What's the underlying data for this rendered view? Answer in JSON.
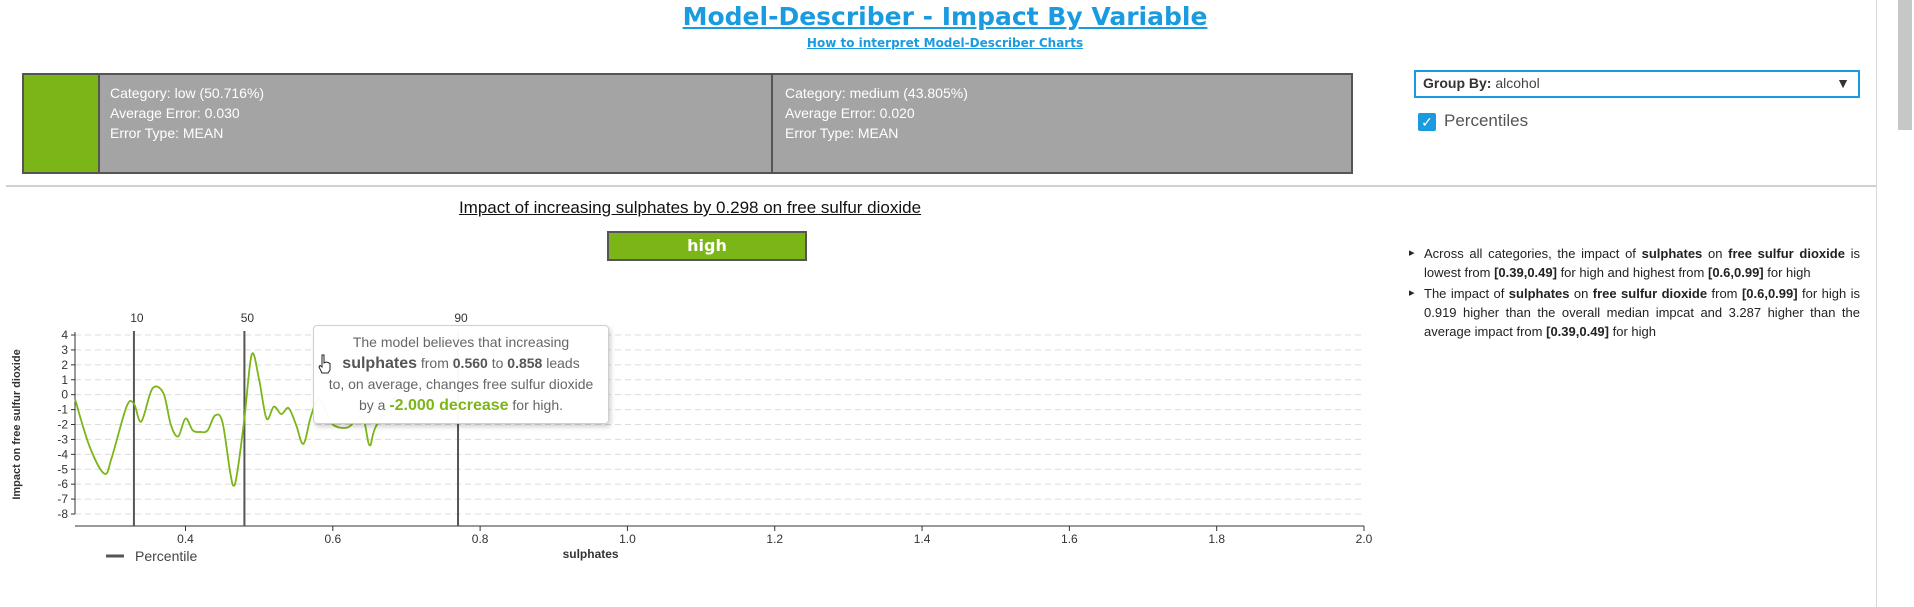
{
  "header": {
    "title": "Model-Describer - Impact By Variable",
    "subtitle_link": "How to interpret Model-Describer Charts"
  },
  "categories": [
    {
      "line1": "Category: low (50.716%)",
      "line2": "Average Error: 0.030",
      "line3": "Error Type: MEAN"
    },
    {
      "line1": "Category: medium (43.805%)",
      "line2": "Average Error: 0.020",
      "line3": "Error Type: MEAN"
    }
  ],
  "controls": {
    "group_by_label": "Group By:",
    "group_by_value": "alcohol",
    "percentiles_label": "Percentiles",
    "percentiles_checked": true
  },
  "colors": {
    "accent": "#1a9be0",
    "series": "#7cb518",
    "category_bg": "#a4a4a4",
    "percentile_line": "#555555"
  },
  "selected_category": "high",
  "insights": [
    [
      {
        "t": "Across all categories, the impact of ",
        "b": false
      },
      {
        "t": "sulphates",
        "b": true
      },
      {
        "t": " on ",
        "b": false
      },
      {
        "t": "free sulfur dioxide",
        "b": true
      },
      {
        "t": " is lowest from ",
        "b": false
      },
      {
        "t": "[0.39,0.49]",
        "b": true
      },
      {
        "t": " for high and highest from ",
        "b": false
      },
      {
        "t": "[0.6,0.99]",
        "b": true
      },
      {
        "t": " for high",
        "b": false
      }
    ],
    [
      {
        "t": "The impact of ",
        "b": false
      },
      {
        "t": "sulphates",
        "b": true
      },
      {
        "t": " on ",
        "b": false
      },
      {
        "t": "free sulfur dioxide",
        "b": true
      },
      {
        "t": " from ",
        "b": false
      },
      {
        "t": "[0.6,0.99]",
        "b": true
      },
      {
        "t": " for high is 0.919 higher than the overall median impcat and 3.287 higher than the average impact from ",
        "b": false
      },
      {
        "t": "[0.39,0.49]",
        "b": true
      },
      {
        "t": " for high",
        "b": false
      }
    ]
  ],
  "tooltip": {
    "line1": "The model believes that increasing",
    "var": "sulphates",
    "from_word": "from",
    "from_val": "0.560",
    "to_word": "to",
    "to_val": "0.858",
    "leads": "leads",
    "line3": "to, on average, changes free sulfur dioxide",
    "by_a": "by a",
    "change": "-2.000 decrease",
    "for_cat": "for high."
  },
  "chart_data": {
    "type": "line",
    "title": "Impact of increasing sulphates by 0.298 on free sulfur dioxide",
    "xlabel": "sulphates",
    "ylabel": "Impact on free sulfur dioxide",
    "xlim": [
      0.25,
      2.0
    ],
    "ylim": [
      -8,
      4
    ],
    "x_ticks": [
      0.4,
      0.6,
      0.8,
      1.0,
      1.2,
      1.4,
      1.6,
      1.8,
      2.0
    ],
    "y_ticks": [
      4,
      3,
      2,
      1,
      0,
      -1,
      -2,
      -3,
      -4,
      -5,
      -6,
      -7,
      -8
    ],
    "grid": "horizontal dashed",
    "legend": [
      {
        "name": "Percentile",
        "position": "bottom-left"
      }
    ],
    "percentile_lines": [
      {
        "label": "10",
        "x": 0.33
      },
      {
        "label": "50",
        "x": 0.48
      },
      {
        "label": "90",
        "x": 0.77
      }
    ],
    "series": [
      {
        "name": "high",
        "x": [
          0.25,
          0.27,
          0.29,
          0.3,
          0.32,
          0.33,
          0.34,
          0.355,
          0.37,
          0.38,
          0.39,
          0.4,
          0.41,
          0.42,
          0.43,
          0.44,
          0.45,
          0.46,
          0.465,
          0.47,
          0.48,
          0.49,
          0.5,
          0.51,
          0.52,
          0.53,
          0.54,
          0.55,
          0.56,
          0.57,
          0.58,
          0.59,
          0.6,
          0.62,
          0.64,
          0.65,
          0.66,
          0.7,
          0.75,
          0.78,
          0.8
        ],
        "values": [
          -0.3,
          -3.5,
          -5.3,
          -4.2,
          -0.8,
          -0.6,
          -1.8,
          0.4,
          0.1,
          -2.0,
          -2.8,
          -1.6,
          -2.4,
          -2.5,
          -2.4,
          -1.4,
          -1.8,
          -5.0,
          -6.1,
          -5.3,
          -1.6,
          2.7,
          1.0,
          -1.6,
          -0.8,
          -1.3,
          -0.9,
          -2.0,
          -3.3,
          -1.5,
          -0.3,
          -1.0,
          -2.0,
          -2.2,
          -1.5,
          -3.4,
          -2.0,
          0.5,
          0.4,
          0.3,
          0.5
        ]
      }
    ]
  }
}
